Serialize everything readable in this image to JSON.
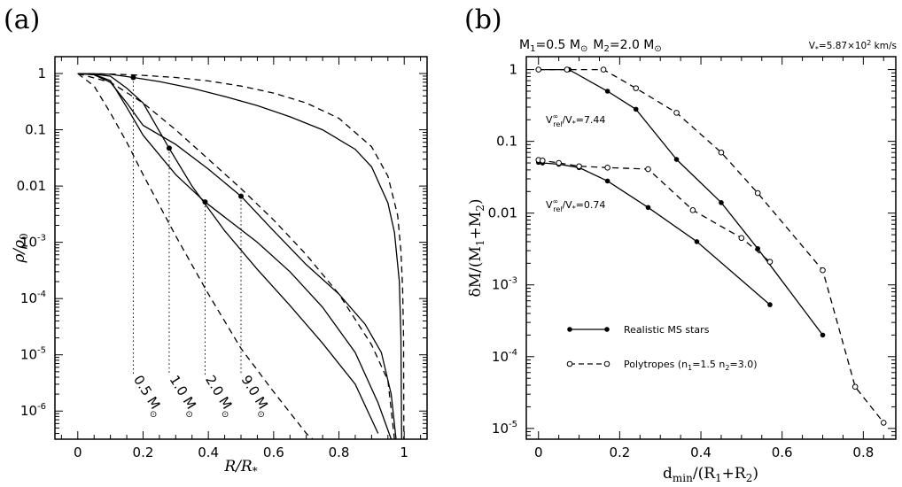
{
  "chart_data": [
    {
      "type": "line",
      "panel_label": "(a)",
      "xlabel": "R/R",
      "xlabel_sub": "*",
      "ylabel": "ρ/ρ",
      "ylabel_sub": "0",
      "xlim": [
        -0.07,
        1.07
      ],
      "ylim_log10": [
        -6.5,
        0.3
      ],
      "y_scale": "log",
      "x_ticks": [
        0,
        0.2,
        0.4,
        0.6,
        0.8,
        1
      ],
      "x_tick_labels": [
        "0",
        "0.2",
        "0.4",
        "0.6",
        "0.8",
        "1"
      ],
      "y_ticks_log10": [
        0,
        -1,
        -2,
        -3,
        -4,
        -5,
        -6
      ],
      "y_tick_labels": [
        {
          "base": "1",
          "exp": ""
        },
        {
          "base": "0.1",
          "exp": ""
        },
        {
          "base": "0.01",
          "exp": ""
        },
        {
          "base": "10",
          "exp": "-3"
        },
        {
          "base": "10",
          "exp": "-4"
        },
        {
          "base": "10",
          "exp": "-5"
        },
        {
          "base": "10",
          "exp": "-6"
        }
      ],
      "mass_labels": [
        {
          "value": "0.5",
          "unit": "M",
          "x": 0.17
        },
        {
          "value": "1.0",
          "unit": "M",
          "x": 0.28
        },
        {
          "value": "2.0",
          "unit": "M",
          "x": 0.39
        },
        {
          "value": "9.0",
          "unit": "M",
          "x": 0.5
        }
      ],
      "markers": [
        {
          "x": 0.17,
          "y": 0.85
        },
        {
          "x": 0.28,
          "y": 0.047
        },
        {
          "x": 0.39,
          "y": 0.0052
        },
        {
          "x": 0.5,
          "y": 0.0066
        }
      ],
      "series": [
        {
          "style": "solid",
          "points": [
            [
              0,
              1
            ],
            [
              0.05,
              0.99
            ],
            [
              0.1,
              0.97
            ],
            [
              0.17,
              0.85
            ],
            [
              0.25,
              0.72
            ],
            [
              0.35,
              0.55
            ],
            [
              0.45,
              0.39
            ],
            [
              0.55,
              0.27
            ],
            [
              0.65,
              0.17
            ],
            [
              0.75,
              0.1
            ],
            [
              0.85,
              0.045
            ],
            [
              0.9,
              0.022
            ],
            [
              0.95,
              0.005
            ],
            [
              0.97,
              0.0015
            ],
            [
              0.985,
              0.0002
            ],
            [
              0.99,
              2e-05
            ],
            [
              0.992,
              3e-07
            ]
          ]
        },
        {
          "style": "solid",
          "points": [
            [
              0,
              1
            ],
            [
              0.05,
              0.97
            ],
            [
              0.1,
              0.9
            ],
            [
              0.15,
              0.55
            ],
            [
              0.2,
              0.3
            ],
            [
              0.28,
              0.047
            ],
            [
              0.35,
              0.01
            ],
            [
              0.45,
              0.0016
            ],
            [
              0.55,
              0.00033
            ],
            [
              0.65,
              7.5e-05
            ],
            [
              0.75,
              1.6e-05
            ],
            [
              0.85,
              3e-06
            ],
            [
              0.92,
              4e-07
            ]
          ]
        },
        {
          "style": "solid",
          "points": [
            [
              0,
              1
            ],
            [
              0.05,
              0.96
            ],
            [
              0.1,
              0.75
            ],
            [
              0.15,
              0.25
            ],
            [
              0.2,
              0.08
            ],
            [
              0.3,
              0.016
            ],
            [
              0.39,
              0.0052
            ],
            [
              0.45,
              0.0028
            ],
            [
              0.55,
              0.001
            ],
            [
              0.65,
              0.0003
            ],
            [
              0.75,
              7e-05
            ],
            [
              0.85,
              1.1e-05
            ],
            [
              0.92,
              1.4e-06
            ],
            [
              0.96,
              3e-07
            ]
          ]
        },
        {
          "style": "solid",
          "points": [
            [
              0,
              1
            ],
            [
              0.05,
              0.95
            ],
            [
              0.1,
              0.7
            ],
            [
              0.15,
              0.3
            ],
            [
              0.2,
              0.12
            ],
            [
              0.3,
              0.055
            ],
            [
              0.4,
              0.02
            ],
            [
              0.5,
              0.0066
            ],
            [
              0.6,
              0.0016
            ],
            [
              0.7,
              0.0004
            ],
            [
              0.8,
              0.00012
            ],
            [
              0.88,
              3.5e-05
            ],
            [
              0.93,
              1.1e-05
            ],
            [
              0.96,
              2e-06
            ],
            [
              0.975,
              3e-07
            ]
          ]
        },
        {
          "style": "dashed",
          "points": [
            [
              0,
              1
            ],
            [
              0.1,
              0.98
            ],
            [
              0.2,
              0.93
            ],
            [
              0.3,
              0.85
            ],
            [
              0.4,
              0.74
            ],
            [
              0.5,
              0.6
            ],
            [
              0.6,
              0.45
            ],
            [
              0.7,
              0.3
            ],
            [
              0.8,
              0.16
            ],
            [
              0.9,
              0.05
            ],
            [
              0.95,
              0.015
            ],
            [
              0.98,
              0.003
            ],
            [
              0.99,
              0.0007
            ],
            [
              0.995,
              0.00015
            ],
            [
              0.998,
              2e-05
            ],
            [
              0.999,
              3e-07
            ]
          ]
        },
        {
          "style": "dashed",
          "points": [
            [
              0,
              1
            ],
            [
              0.1,
              0.7
            ],
            [
              0.2,
              0.3
            ],
            [
              0.3,
              0.1
            ],
            [
              0.4,
              0.03
            ],
            [
              0.5,
              0.009
            ],
            [
              0.6,
              0.0025
            ],
            [
              0.7,
              0.0006
            ],
            [
              0.8,
              0.00012
            ],
            [
              0.9,
              1.5e-05
            ],
            [
              0.95,
              3.5e-06
            ],
            [
              0.97,
              3e-07
            ]
          ]
        },
        {
          "style": "dashed",
          "points": [
            [
              0,
              1
            ],
            [
              0.05,
              0.6
            ],
            [
              0.1,
              0.2
            ],
            [
              0.15,
              0.06
            ],
            [
              0.2,
              0.016
            ],
            [
              0.3,
              0.0013
            ],
            [
              0.4,
              0.00012
            ],
            [
              0.5,
              1.3e-05
            ],
            [
              0.6,
              2.2e-06
            ],
            [
              0.7,
              4e-07
            ],
            [
              0.72,
              3e-07
            ]
          ]
        }
      ]
    },
    {
      "type": "line",
      "panel_label": "(b)",
      "header_left": "M",
      "header_m1_sub": "1",
      "header_m1_val": "=0.5 M",
      "header_m2": "M",
      "header_m2_sub": "2",
      "header_m2_val": "=2.0 M",
      "header_right": "V",
      "header_right_sub": "*",
      "header_right_val": "=5.87×10",
      "header_right_exp": "2",
      "header_right_unit": " km/s",
      "xlabel": "d",
      "xlabel_sub": "min",
      "xlabel_tail": "/(R",
      "xlabel_r1": "1",
      "xlabel_plus": "+R",
      "xlabel_r2": "2",
      "xlabel_end": ")",
      "ylabel": "δM/(M",
      "ylabel_s1": "1",
      "ylabel_mid": "+M",
      "ylabel_s2": "2",
      "ylabel_end": ")",
      "xlim": [
        -0.03,
        0.88
      ],
      "ylim_log10": [
        -5.15,
        0.18
      ],
      "y_scale": "log",
      "x_ticks": [
        0,
        0.2,
        0.4,
        0.6,
        0.8
      ],
      "x_tick_labels": [
        "0",
        "0.2",
        "0.4",
        "0.6",
        "0.8"
      ],
      "y_ticks_log10": [
        0,
        -1,
        -2,
        -3,
        -4,
        -5
      ],
      "y_tick_labels": [
        {
          "base": "1",
          "exp": ""
        },
        {
          "base": "0.1",
          "exp": ""
        },
        {
          "base": "0.01",
          "exp": ""
        },
        {
          "base": "10",
          "exp": "-3"
        },
        {
          "base": "10",
          "exp": "-4"
        },
        {
          "base": "10",
          "exp": "-5"
        }
      ],
      "annotations": [
        {
          "pre": "V",
          "sup": "∞",
          "sub": "rel",
          "post": "/V",
          "sub2": "*",
          "val": "=7.44"
        },
        {
          "pre": "V",
          "sup": "∞",
          "sub": "rel",
          "post": "/V",
          "sub2": "*",
          "val": "=0.74"
        }
      ],
      "legend": [
        {
          "label": "Realistic MS stars",
          "style": "solid",
          "marker": "filled"
        },
        {
          "label": "Polytropes (n",
          "label_s1": "1",
          "label_mid": "=1.5 n",
          "label_s2": "2",
          "label_end": "=3.0)",
          "style": "dashed",
          "marker": "open"
        }
      ],
      "series": [
        {
          "name": "Realistic MS stars",
          "group": "high",
          "style": "solid",
          "marker": "filled",
          "points": [
            [
              0,
              1
            ],
            [
              0.075,
              1
            ],
            [
              0.17,
              0.5
            ],
            [
              0.24,
              0.28
            ],
            [
              0.34,
              0.056
            ],
            [
              0.45,
              0.014
            ],
            [
              0.54,
              0.0032
            ],
            [
              0.7,
              0.0002
            ]
          ]
        },
        {
          "name": "Polytropes",
          "group": "high",
          "style": "dashed",
          "marker": "open",
          "points": [
            [
              0,
              1
            ],
            [
              0.07,
              1
            ],
            [
              0.16,
              1
            ],
            [
              0.24,
              0.55
            ],
            [
              0.34,
              0.25
            ],
            [
              0.45,
              0.07
            ],
            [
              0.54,
              0.019
            ],
            [
              0.7,
              0.0016
            ],
            [
              0.78,
              3.8e-05
            ],
            [
              0.85,
              1.2e-05
            ]
          ]
        },
        {
          "name": "Realistic MS stars",
          "group": "low",
          "style": "solid",
          "marker": "filled",
          "points": [
            [
              0,
              0.051
            ],
            [
              0.01,
              0.05
            ],
            [
              0.05,
              0.048
            ],
            [
              0.1,
              0.043
            ],
            [
              0.17,
              0.028
            ],
            [
              0.27,
              0.012
            ],
            [
              0.39,
              0.004
            ],
            [
              0.57,
              0.00053
            ]
          ]
        },
        {
          "name": "Polytropes",
          "group": "low",
          "style": "dashed",
          "marker": "open",
          "points": [
            [
              0,
              0.055
            ],
            [
              0.01,
              0.054
            ],
            [
              0.05,
              0.05
            ],
            [
              0.1,
              0.045
            ],
            [
              0.17,
              0.043
            ],
            [
              0.27,
              0.041
            ],
            [
              0.38,
              0.011
            ],
            [
              0.5,
              0.0045
            ],
            [
              0.57,
              0.0021
            ]
          ]
        }
      ]
    }
  ]
}
